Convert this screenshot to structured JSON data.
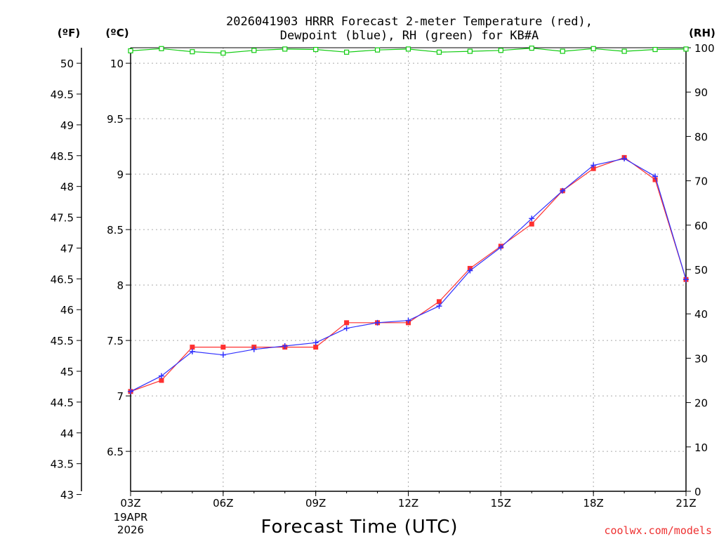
{
  "chart_data": {
    "type": "line",
    "title_line1": "2026041903 HRRR Forecast 2-meter Temperature (red),",
    "title_line2": "Dewpoint (blue), RH (green) for KB#A",
    "xlabel": "Forecast Time (UTC)",
    "credit": "coolwx.com/models",
    "units": {
      "fahrenheit": "(ºF)",
      "celsius": "(ºC)",
      "rh": "(RH)"
    },
    "x_start_label": {
      "time": "03Z",
      "date": "19APR",
      "year": "2026"
    },
    "x_hours": [
      3,
      4,
      5,
      6,
      7,
      8,
      9,
      10,
      11,
      12,
      13,
      14,
      15,
      16,
      17,
      18,
      19,
      20,
      21
    ],
    "x_ticks": [
      {
        "hour": 3,
        "label": "03Z"
      },
      {
        "hour": 6,
        "label": "06Z"
      },
      {
        "hour": 9,
        "label": "09Z"
      },
      {
        "hour": 12,
        "label": "12Z"
      },
      {
        "hour": 15,
        "label": "15Z"
      },
      {
        "hour": 18,
        "label": "18Z"
      },
      {
        "hour": 21,
        "label": "21Z"
      }
    ],
    "xlim": [
      3,
      21
    ],
    "y_celsius": {
      "min": 6.14,
      "max": 10.14,
      "ticks": [
        "6.5",
        "7",
        "7.5",
        "8",
        "8.5",
        "9",
        "9.5",
        "10"
      ]
    },
    "y_fahrenheit": {
      "ticks": [
        "43",
        "43.5",
        "44",
        "44.5",
        "45",
        "45.5",
        "46",
        "46.5",
        "47",
        "47.5",
        "48",
        "48.5",
        "49",
        "49.5",
        "50"
      ]
    },
    "y_rh": {
      "min": 0,
      "max": 100,
      "ticks": [
        "0",
        "10",
        "20",
        "30",
        "40",
        "50",
        "60",
        "70",
        "80",
        "90",
        "100"
      ]
    },
    "grid": true,
    "series": [
      {
        "name": "Temperature",
        "unit": "C",
        "color": "#ff3030",
        "marker": "square",
        "values": [
          7.04,
          7.14,
          7.44,
          7.44,
          7.44,
          7.44,
          7.44,
          7.66,
          7.66,
          7.66,
          7.85,
          8.15,
          8.35,
          8.55,
          8.85,
          9.05,
          9.15,
          8.95,
          8.05
        ]
      },
      {
        "name": "Dewpoint",
        "unit": "C",
        "color": "#3030ff",
        "marker": "plus",
        "values": [
          7.04,
          7.18,
          7.4,
          7.37,
          7.42,
          7.45,
          7.48,
          7.61,
          7.66,
          7.68,
          7.81,
          8.13,
          8.34,
          8.6,
          8.85,
          9.08,
          9.14,
          8.98,
          8.05
        ]
      },
      {
        "name": "RH",
        "unit": "%",
        "color": "#10cc10",
        "marker": "open-square",
        "values": [
          99.3,
          99.8,
          99.1,
          98.8,
          99.4,
          99.7,
          99.6,
          99.0,
          99.5,
          99.7,
          99.0,
          99.2,
          99.4,
          99.9,
          99.2,
          99.8,
          99.2,
          99.6,
          99.7
        ]
      }
    ]
  }
}
